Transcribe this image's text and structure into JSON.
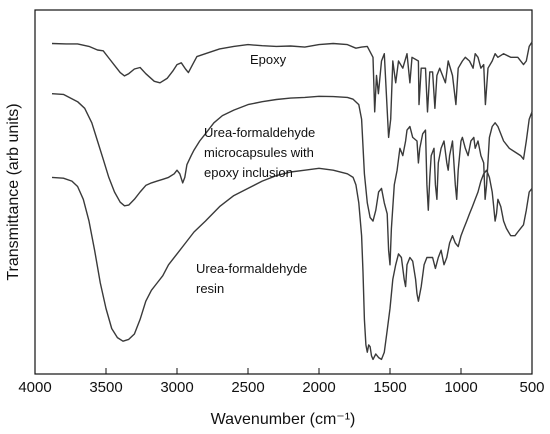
{
  "chart_data": {
    "type": "line",
    "title": "",
    "xlabel": "Wavenumber (cm⁻¹)",
    "ylabel": "Transmittance (arb units)",
    "xlim": [
      4000,
      500
    ],
    "x_reversed": true,
    "xticks": [
      4000,
      3500,
      3000,
      2500,
      2000,
      1500,
      1000,
      500
    ],
    "ylim": [
      0,
      1
    ],
    "y_ticks_labeled": false,
    "grid": false,
    "legend": "none",
    "annotations": [
      {
        "lines": [
          "Epoxy"
        ],
        "series": 0
      },
      {
        "lines": [
          "Urea-formaldehyde",
          "microcapsules with",
          "epoxy inclusion"
        ],
        "series": 1
      },
      {
        "lines": [
          "Urea-formaldehyde",
          "resin"
        ],
        "series": 2
      }
    ],
    "series": [
      {
        "values": [
          [
            3880,
            0.908
          ],
          [
            3780,
            0.907
          ],
          [
            3700,
            0.907
          ],
          [
            3620,
            0.9
          ],
          [
            3560,
            0.89
          ],
          [
            3520,
            0.888
          ],
          [
            3480,
            0.868
          ],
          [
            3440,
            0.848
          ],
          [
            3400,
            0.828
          ],
          [
            3370,
            0.819
          ],
          [
            3340,
            0.825
          ],
          [
            3300,
            0.838
          ],
          [
            3260,
            0.842
          ],
          [
            3220,
            0.825
          ],
          [
            3160,
            0.804
          ],
          [
            3120,
            0.8
          ],
          [
            3070,
            0.812
          ],
          [
            3030,
            0.832
          ],
          [
            3000,
            0.85
          ],
          [
            2970,
            0.855
          ],
          [
            2940,
            0.838
          ],
          [
            2920,
            0.828
          ],
          [
            2890,
            0.85
          ],
          [
            2860,
            0.872
          ],
          [
            2800,
            0.88
          ],
          [
            2700,
            0.893
          ],
          [
            2600,
            0.9
          ],
          [
            2500,
            0.905
          ],
          [
            2400,
            0.902
          ],
          [
            2300,
            0.9
          ],
          [
            2200,
            0.901
          ],
          [
            2100,
            0.898
          ],
          [
            2000,
            0.905
          ],
          [
            1900,
            0.908
          ],
          [
            1800,
            0.905
          ],
          [
            1740,
            0.895
          ],
          [
            1700,
            0.898
          ],
          [
            1660,
            0.9
          ],
          [
            1620,
            0.87
          ],
          [
            1608,
            0.72
          ],
          [
            1595,
            0.82
          ],
          [
            1582,
            0.77
          ],
          [
            1560,
            0.86
          ],
          [
            1540,
            0.88
          ],
          [
            1510,
            0.65
          ],
          [
            1495,
            0.7
          ],
          [
            1480,
            0.86
          ],
          [
            1460,
            0.8
          ],
          [
            1440,
            0.86
          ],
          [
            1410,
            0.84
          ],
          [
            1380,
            0.88
          ],
          [
            1360,
            0.8
          ],
          [
            1345,
            0.87
          ],
          [
            1300,
            0.86
          ],
          [
            1296,
            0.74
          ],
          [
            1280,
            0.84
          ],
          [
            1250,
            0.84
          ],
          [
            1236,
            0.72
          ],
          [
            1220,
            0.83
          ],
          [
            1200,
            0.83
          ],
          [
            1184,
            0.73
          ],
          [
            1170,
            0.82
          ],
          [
            1150,
            0.84
          ],
          [
            1110,
            0.8
          ],
          [
            1090,
            0.86
          ],
          [
            1060,
            0.82
          ],
          [
            1036,
            0.74
          ],
          [
            1020,
            0.84
          ],
          [
            990,
            0.86
          ],
          [
            970,
            0.87
          ],
          [
            940,
            0.86
          ],
          [
            915,
            0.84
          ],
          [
            900,
            0.88
          ],
          [
            880,
            0.87
          ],
          [
            860,
            0.84
          ],
          [
            840,
            0.85
          ],
          [
            828,
            0.74
          ],
          [
            810,
            0.84
          ],
          [
            780,
            0.86
          ],
          [
            760,
            0.88
          ],
          [
            740,
            0.87
          ],
          [
            700,
            0.88
          ],
          [
            650,
            0.87
          ],
          [
            600,
            0.87
          ],
          [
            560,
            0.85
          ],
          [
            540,
            0.86
          ],
          [
            520,
            0.9
          ],
          [
            500,
            0.912
          ]
        ]
      },
      {
        "values": [
          [
            3880,
            0.77
          ],
          [
            3800,
            0.768
          ],
          [
            3700,
            0.748
          ],
          [
            3650,
            0.73
          ],
          [
            3600,
            0.69
          ],
          [
            3560,
            0.64
          ],
          [
            3520,
            0.59
          ],
          [
            3480,
            0.54
          ],
          [
            3440,
            0.5
          ],
          [
            3400,
            0.472
          ],
          [
            3370,
            0.462
          ],
          [
            3340,
            0.464
          ],
          [
            3300,
            0.48
          ],
          [
            3260,
            0.5
          ],
          [
            3220,
            0.518
          ],
          [
            3180,
            0.525
          ],
          [
            3140,
            0.53
          ],
          [
            3100,
            0.535
          ],
          [
            3060,
            0.54
          ],
          [
            3020,
            0.55
          ],
          [
            3000,
            0.56
          ],
          [
            2980,
            0.55
          ],
          [
            2960,
            0.525
          ],
          [
            2945,
            0.54
          ],
          [
            2930,
            0.575
          ],
          [
            2900,
            0.6
          ],
          [
            2880,
            0.615
          ],
          [
            2840,
            0.64
          ],
          [
            2800,
            0.66
          ],
          [
            2740,
            0.69
          ],
          [
            2680,
            0.71
          ],
          [
            2600,
            0.725
          ],
          [
            2500,
            0.74
          ],
          [
            2400,
            0.748
          ],
          [
            2300,
            0.754
          ],
          [
            2200,
            0.758
          ],
          [
            2100,
            0.76
          ],
          [
            2000,
            0.763
          ],
          [
            1900,
            0.762
          ],
          [
            1800,
            0.76
          ],
          [
            1760,
            0.755
          ],
          [
            1720,
            0.74
          ],
          [
            1700,
            0.7
          ],
          [
            1680,
            0.55
          ],
          [
            1660,
            0.47
          ],
          [
            1640,
            0.43
          ],
          [
            1620,
            0.42
          ],
          [
            1600,
            0.45
          ],
          [
            1580,
            0.5
          ],
          [
            1560,
            0.51
          ],
          [
            1540,
            0.47
          ],
          [
            1520,
            0.44
          ],
          [
            1510,
            0.34
          ],
          [
            1500,
            0.3
          ],
          [
            1490,
            0.4
          ],
          [
            1470,
            0.52
          ],
          [
            1450,
            0.56
          ],
          [
            1430,
            0.62
          ],
          [
            1410,
            0.6
          ],
          [
            1390,
            0.64
          ],
          [
            1380,
            0.67
          ],
          [
            1360,
            0.68
          ],
          [
            1340,
            0.65
          ],
          [
            1310,
            0.64
          ],
          [
            1300,
            0.58
          ],
          [
            1290,
            0.62
          ],
          [
            1270,
            0.66
          ],
          [
            1250,
            0.67
          ],
          [
            1240,
            0.52
          ],
          [
            1230,
            0.45
          ],
          [
            1220,
            0.54
          ],
          [
            1210,
            0.6
          ],
          [
            1190,
            0.62
          ],
          [
            1180,
            0.52
          ],
          [
            1170,
            0.48
          ],
          [
            1160,
            0.58
          ],
          [
            1140,
            0.62
          ],
          [
            1120,
            0.64
          ],
          [
            1100,
            0.58
          ],
          [
            1090,
            0.56
          ],
          [
            1080,
            0.6
          ],
          [
            1060,
            0.64
          ],
          [
            1040,
            0.52
          ],
          [
            1030,
            0.48
          ],
          [
            1020,
            0.56
          ],
          [
            1000,
            0.64
          ],
          [
            990,
            0.65
          ],
          [
            970,
            0.62
          ],
          [
            950,
            0.6
          ],
          [
            930,
            0.64
          ],
          [
            910,
            0.65
          ],
          [
            900,
            0.62
          ],
          [
            880,
            0.64
          ],
          [
            860,
            0.6
          ],
          [
            840,
            0.58
          ],
          [
            830,
            0.48
          ],
          [
            820,
            0.52
          ],
          [
            800,
            0.65
          ],
          [
            780,
            0.68
          ],
          [
            760,
            0.69
          ],
          [
            740,
            0.68
          ],
          [
            700,
            0.64
          ],
          [
            660,
            0.62
          ],
          [
            620,
            0.61
          ],
          [
            580,
            0.6
          ],
          [
            560,
            0.59
          ],
          [
            540,
            0.64
          ],
          [
            520,
            0.7
          ],
          [
            500,
            0.72
          ]
        ]
      },
      {
        "values": [
          [
            3880,
            0.54
          ],
          [
            3800,
            0.538
          ],
          [
            3740,
            0.53
          ],
          [
            3700,
            0.515
          ],
          [
            3660,
            0.48
          ],
          [
            3620,
            0.42
          ],
          [
            3580,
            0.34
          ],
          [
            3540,
            0.25
          ],
          [
            3500,
            0.18
          ],
          [
            3460,
            0.125
          ],
          [
            3420,
            0.1
          ],
          [
            3380,
            0.09
          ],
          [
            3340,
            0.095
          ],
          [
            3300,
            0.11
          ],
          [
            3260,
            0.15
          ],
          [
            3220,
            0.2
          ],
          [
            3180,
            0.23
          ],
          [
            3140,
            0.25
          ],
          [
            3100,
            0.27
          ],
          [
            3060,
            0.3
          ],
          [
            3000,
            0.33
          ],
          [
            2940,
            0.36
          ],
          [
            2880,
            0.39
          ],
          [
            2800,
            0.42
          ],
          [
            2700,
            0.46
          ],
          [
            2600,
            0.49
          ],
          [
            2500,
            0.51
          ],
          [
            2400,
            0.53
          ],
          [
            2300,
            0.545
          ],
          [
            2200,
            0.555
          ],
          [
            2100,
            0.56
          ],
          [
            2000,
            0.565
          ],
          [
            1900,
            0.56
          ],
          [
            1800,
            0.55
          ],
          [
            1760,
            0.54
          ],
          [
            1740,
            0.52
          ],
          [
            1720,
            0.47
          ],
          [
            1700,
            0.38
          ],
          [
            1690,
            0.28
          ],
          [
            1680,
            0.15
          ],
          [
            1670,
            0.08
          ],
          [
            1660,
            0.06
          ],
          [
            1650,
            0.08
          ],
          [
            1640,
            0.075
          ],
          [
            1630,
            0.05
          ],
          [
            1620,
            0.04
          ],
          [
            1600,
            0.055
          ],
          [
            1580,
            0.045
          ],
          [
            1560,
            0.04
          ],
          [
            1540,
            0.06
          ],
          [
            1520,
            0.12
          ],
          [
            1500,
            0.18
          ],
          [
            1480,
            0.26
          ],
          [
            1460,
            0.3
          ],
          [
            1440,
            0.33
          ],
          [
            1420,
            0.32
          ],
          [
            1400,
            0.26
          ],
          [
            1390,
            0.24
          ],
          [
            1380,
            0.3
          ],
          [
            1360,
            0.32
          ],
          [
            1340,
            0.31
          ],
          [
            1320,
            0.26
          ],
          [
            1310,
            0.22
          ],
          [
            1300,
            0.2
          ],
          [
            1280,
            0.24
          ],
          [
            1260,
            0.3
          ],
          [
            1240,
            0.32
          ],
          [
            1220,
            0.32
          ],
          [
            1200,
            0.32
          ],
          [
            1180,
            0.29
          ],
          [
            1160,
            0.32
          ],
          [
            1140,
            0.34
          ],
          [
            1120,
            0.3
          ],
          [
            1100,
            0.32
          ],
          [
            1080,
            0.36
          ],
          [
            1060,
            0.38
          ],
          [
            1040,
            0.36
          ],
          [
            1020,
            0.35
          ],
          [
            1000,
            0.38
          ],
          [
            980,
            0.4
          ],
          [
            960,
            0.42
          ],
          [
            940,
            0.44
          ],
          [
            920,
            0.46
          ],
          [
            900,
            0.48
          ],
          [
            880,
            0.5
          ],
          [
            860,
            0.53
          ],
          [
            840,
            0.55
          ],
          [
            820,
            0.56
          ],
          [
            800,
            0.54
          ],
          [
            780,
            0.5
          ],
          [
            770,
            0.46
          ],
          [
            760,
            0.42
          ],
          [
            750,
            0.44
          ],
          [
            740,
            0.48
          ],
          [
            720,
            0.46
          ],
          [
            700,
            0.42
          ],
          [
            680,
            0.4
          ],
          [
            650,
            0.38
          ],
          [
            620,
            0.38
          ],
          [
            600,
            0.39
          ],
          [
            580,
            0.4
          ],
          [
            560,
            0.41
          ],
          [
            540,
            0.45
          ],
          [
            520,
            0.5
          ],
          [
            500,
            0.51
          ]
        ]
      }
    ]
  }
}
